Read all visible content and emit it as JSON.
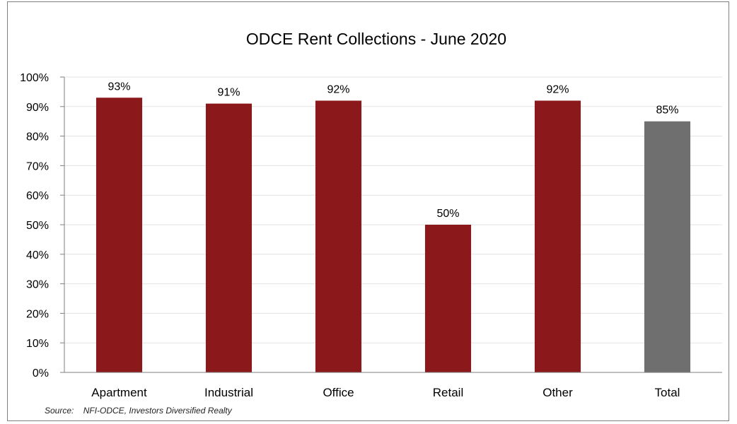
{
  "chart_data": {
    "type": "bar",
    "title": "ODCE Rent Collections - June 2020",
    "xlabel": "",
    "ylabel": "",
    "categories": [
      "Apartment",
      "Industrial",
      "Office",
      "Retail",
      "Other",
      "Total"
    ],
    "values": [
      93,
      91,
      92,
      50,
      92,
      85
    ],
    "value_labels": [
      "93%",
      "91%",
      "92%",
      "50%",
      "92%",
      "85%"
    ],
    "bar_colors": [
      "#8b181b",
      "#8b181b",
      "#8b181b",
      "#8b181b",
      "#8b181b",
      "#6f6f6f"
    ],
    "ylim": [
      0,
      100
    ],
    "yticks": [
      0,
      10,
      20,
      30,
      40,
      50,
      60,
      70,
      80,
      90,
      100
    ],
    "ytick_labels": [
      "0%",
      "10%",
      "20%",
      "30%",
      "40%",
      "50%",
      "60%",
      "70%",
      "80%",
      "90%",
      "100%"
    ],
    "grid": true,
    "legend": "none"
  },
  "source_note": "Source:    NFI-ODCE, Investors Diversified Realty",
  "colors": {
    "bar": "#8b181b",
    "total_bar": "#6f6f6f",
    "gridline": "#e3e3e3",
    "axis": "#7f7f7f"
  }
}
